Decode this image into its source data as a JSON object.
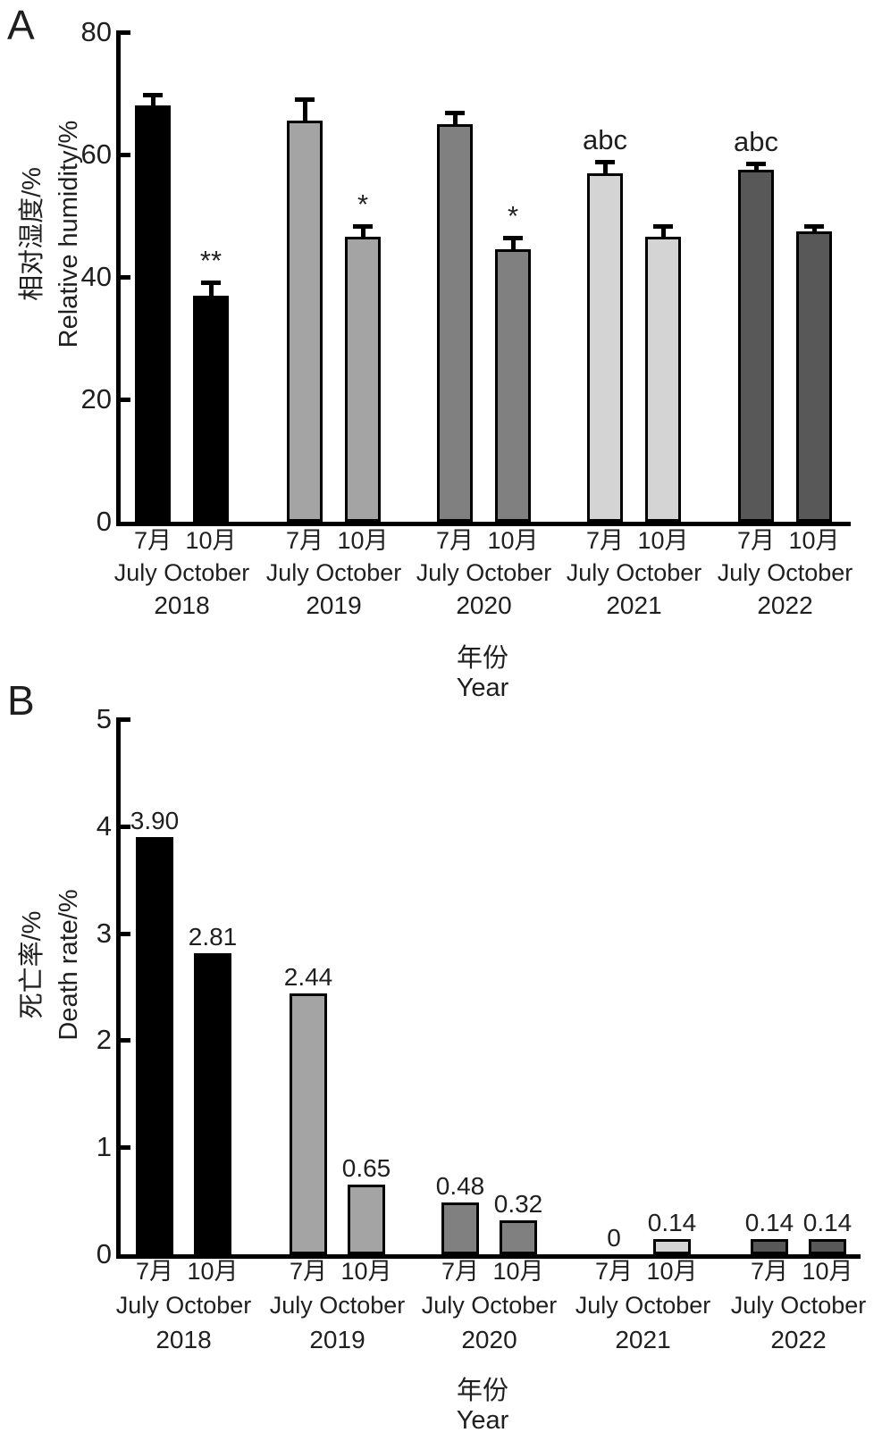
{
  "chart_data": [
    {
      "id": "A",
      "type": "bar",
      "panel_label": "A",
      "ylabel_zh": "相对湿度/%",
      "ylabel_en": "Relative humidity/%",
      "xlabel_zh": "年份",
      "xlabel_en": "Year",
      "ylim": [
        0,
        80
      ],
      "yticks": [
        0,
        20,
        40,
        60,
        80
      ],
      "grid": false,
      "legend": false,
      "error_bars": true,
      "groups": [
        {
          "year": "2018",
          "color": "#000000",
          "bars": [
            {
              "month_zh": "7月",
              "month_en": "July",
              "value": 68.0,
              "error": 1.5,
              "sig": ""
            },
            {
              "month_zh": "10月",
              "month_en": "October",
              "value": 37.0,
              "error": 1.8,
              "sig": "**"
            }
          ]
        },
        {
          "year": "2019",
          "color": "#a4a4a4",
          "bars": [
            {
              "month_zh": "7月",
              "month_en": "July",
              "value": 65.5,
              "error": 3.3,
              "sig": ""
            },
            {
              "month_zh": "10月",
              "month_en": "October",
              "value": 46.5,
              "error": 1.6,
              "sig": "*"
            }
          ]
        },
        {
          "year": "2020",
          "color": "#808080",
          "bars": [
            {
              "month_zh": "7月",
              "month_en": "July",
              "value": 65.0,
              "error": 1.5,
              "sig": ""
            },
            {
              "month_zh": "10月",
              "month_en": "October",
              "value": 44.5,
              "error": 1.7,
              "sig": "*"
            }
          ]
        },
        {
          "year": "2021",
          "color": "#d4d4d4",
          "bars": [
            {
              "month_zh": "7月",
              "month_en": "July",
              "value": 57.0,
              "error": 1.5,
              "sig": "abc"
            },
            {
              "month_zh": "10月",
              "month_en": "October",
              "value": 46.5,
              "error": 1.5,
              "sig": ""
            }
          ]
        },
        {
          "year": "2022",
          "color": "#585858",
          "bars": [
            {
              "month_zh": "7月",
              "month_en": "July",
              "value": 57.5,
              "error": 0.8,
              "sig": "abc"
            },
            {
              "month_zh": "10月",
              "month_en": "October",
              "value": 47.5,
              "error": 0.5,
              "sig": ""
            }
          ]
        }
      ]
    },
    {
      "id": "B",
      "type": "bar",
      "panel_label": "B",
      "ylabel_zh": "死亡率/%",
      "ylabel_en": "Death rate/%",
      "xlabel_zh": "年份",
      "xlabel_en": "Year",
      "ylim": [
        0,
        5
      ],
      "yticks": [
        0,
        1,
        2,
        3,
        4,
        5
      ],
      "grid": false,
      "legend": false,
      "error_bars": false,
      "groups": [
        {
          "year": "2018",
          "color": "#000000",
          "bars": [
            {
              "month_zh": "7月",
              "month_en": "July",
              "value": 3.9,
              "label": "3.90"
            },
            {
              "month_zh": "10月",
              "month_en": "October",
              "value": 2.81,
              "label": "2.81"
            }
          ]
        },
        {
          "year": "2019",
          "color": "#a4a4a4",
          "bars": [
            {
              "month_zh": "7月",
              "month_en": "July",
              "value": 2.44,
              "label": "2.44"
            },
            {
              "month_zh": "10月",
              "month_en": "October",
              "value": 0.65,
              "label": "0.65"
            }
          ]
        },
        {
          "year": "2020",
          "color": "#808080",
          "bars": [
            {
              "month_zh": "7月",
              "month_en": "July",
              "value": 0.48,
              "label": "0.48"
            },
            {
              "month_zh": "10月",
              "month_en": "October",
              "value": 0.32,
              "label": "0.32"
            }
          ]
        },
        {
          "year": "2021",
          "color": "#d4d4d4",
          "bars": [
            {
              "month_zh": "7月",
              "month_en": "July",
              "value": 0,
              "label": "0"
            },
            {
              "month_zh": "10月",
              "month_en": "October",
              "value": 0.14,
              "label": "0.14"
            }
          ]
        },
        {
          "year": "2022",
          "color": "#585858",
          "bars": [
            {
              "month_zh": "7月",
              "month_en": "July",
              "value": 0.14,
              "label": "0.14"
            },
            {
              "month_zh": "10月",
              "month_en": "October",
              "value": 0.14,
              "label": "0.14"
            }
          ]
        }
      ]
    }
  ]
}
